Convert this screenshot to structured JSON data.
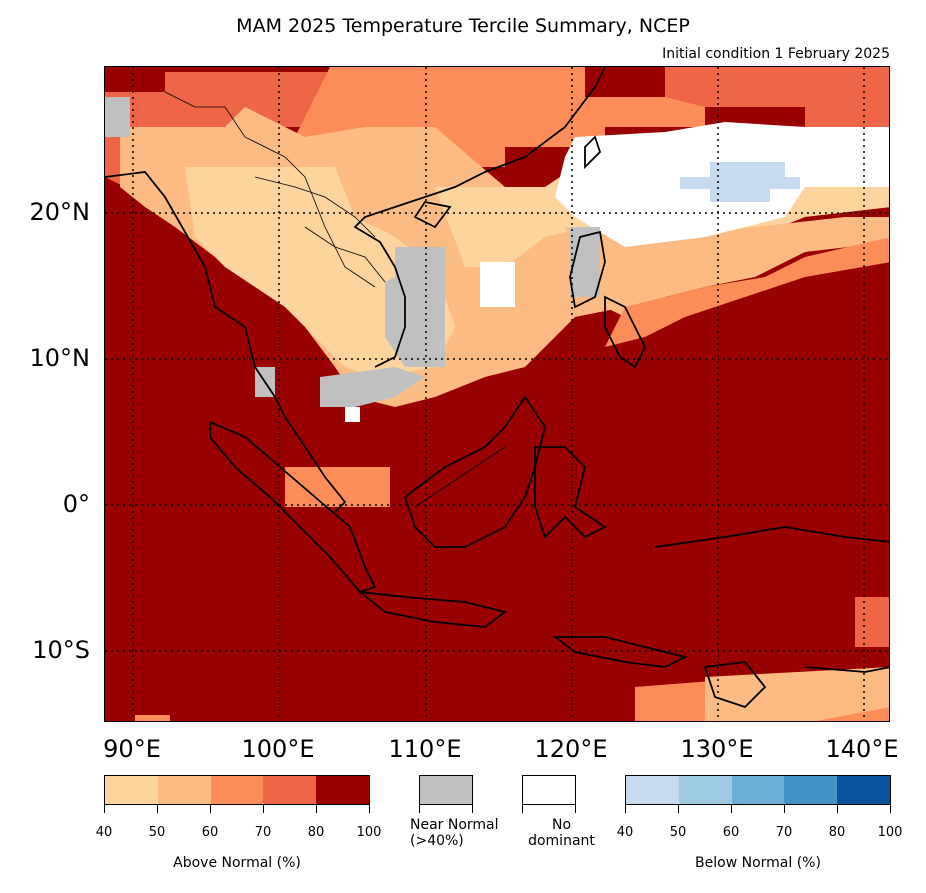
{
  "title": "MAM 2025 Temperature Tercile Summary, NCEP",
  "subtitle": "Initial condition 1 February 2025",
  "axes": {
    "lat_labels": [
      "20°N",
      "10°N",
      "0°",
      "10°S"
    ],
    "lon_labels": [
      "90°E",
      "100°E",
      "110°E",
      "120°E",
      "130°E",
      "140°E"
    ]
  },
  "legend": {
    "above": {
      "caption": "Above Normal (%)",
      "ticks": [
        "40",
        "50",
        "60",
        "70",
        "80",
        "100"
      ],
      "colors": [
        "#fdd49e",
        "#fdbb84",
        "#fc8d59",
        "#ef6548",
        "#990000"
      ]
    },
    "near": {
      "caption_line1": "Near Normal",
      "caption_line2": "(>40%)",
      "color": "#c0c0c0"
    },
    "nodom": {
      "caption_line1": "No",
      "caption_line2": "dominant",
      "color": "#ffffff"
    },
    "below": {
      "caption": "Below Normal (%)",
      "ticks": [
        "40",
        "50",
        "60",
        "70",
        "80",
        "100"
      ],
      "colors": [
        "#c6dbef",
        "#9ecae1",
        "#6baed6",
        "#4292c6",
        "#08519c"
      ]
    }
  },
  "colors": {
    "above_80_100": "#990000",
    "above_70_80": "#ef6548",
    "above_60_70": "#fc8d59",
    "above_50_60": "#fdbb84",
    "above_40_50": "#fdd49e",
    "near_normal": "#c0c0c0",
    "no_dominant": "#ffffff",
    "below_40_50": "#c6dbef"
  }
}
